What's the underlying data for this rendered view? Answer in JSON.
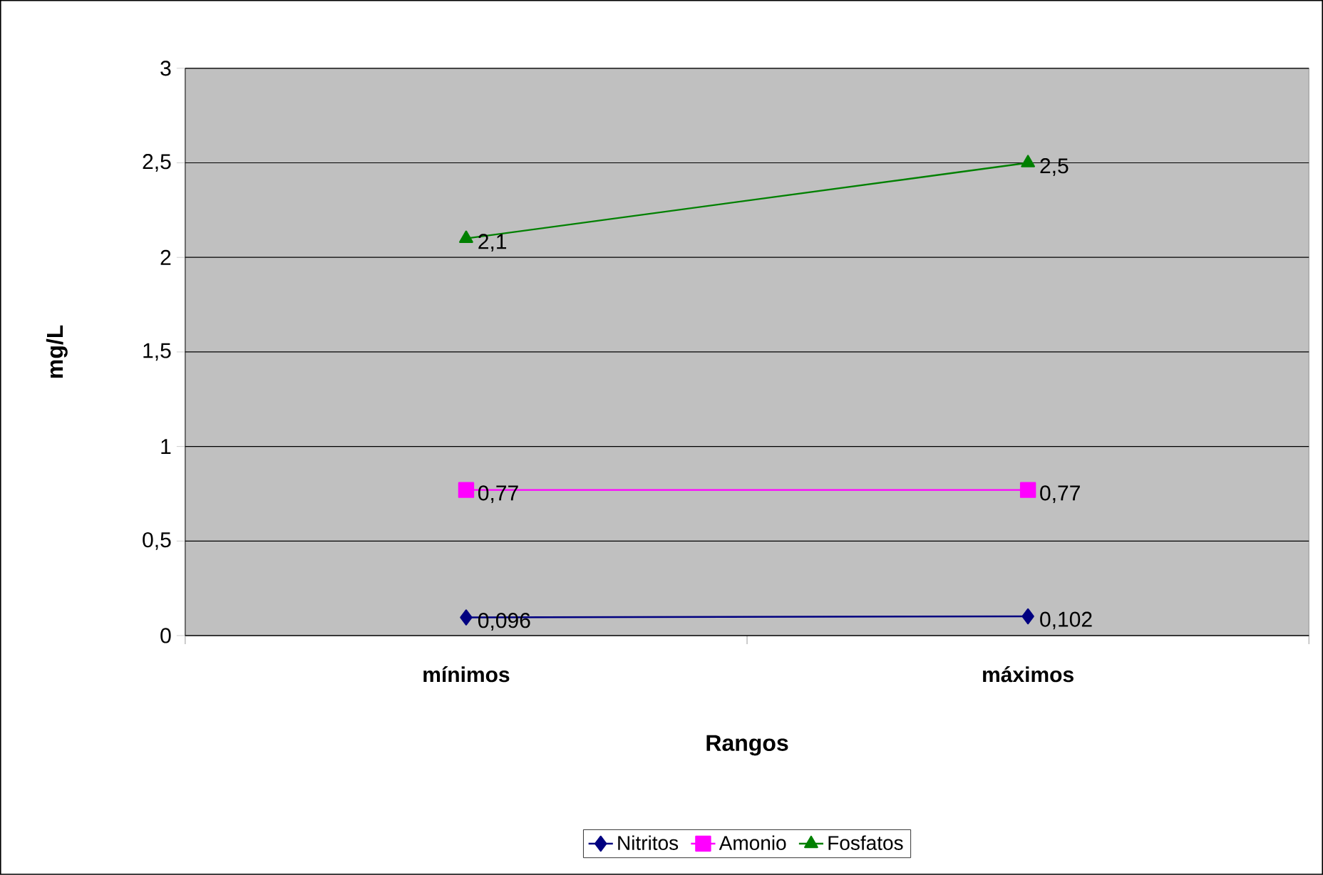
{
  "chart_data": {
    "type": "line",
    "xlabel": "Rangos",
    "ylabel": "mg/L",
    "categories": [
      "mínimos",
      "máximos"
    ],
    "series": [
      {
        "name": "Nitritos",
        "color": "#000080",
        "marker": "diamond",
        "values": [
          0.096,
          0.102
        ],
        "value_labels": [
          "0,096",
          "0,102"
        ]
      },
      {
        "name": "Amonio",
        "color": "#ff00ff",
        "marker": "square",
        "values": [
          0.77,
          0.77
        ],
        "value_labels": [
          "0,77",
          "0,77"
        ]
      },
      {
        "name": "Fosfatos",
        "color": "#008000",
        "marker": "triangle",
        "values": [
          2.1,
          2.5
        ],
        "value_labels": [
          "2,1",
          "2,5"
        ]
      }
    ],
    "ylim": [
      0,
      3
    ],
    "yticks": [
      0,
      {
        "value": 0.5,
        "label": "0,5"
      },
      1,
      {
        "value": 1.5,
        "label": "1,5"
      },
      2,
      {
        "value": 2.5,
        "label": "2,5"
      },
      3
    ],
    "grid": "y",
    "legend": "bottom",
    "line_style": "solid"
  }
}
